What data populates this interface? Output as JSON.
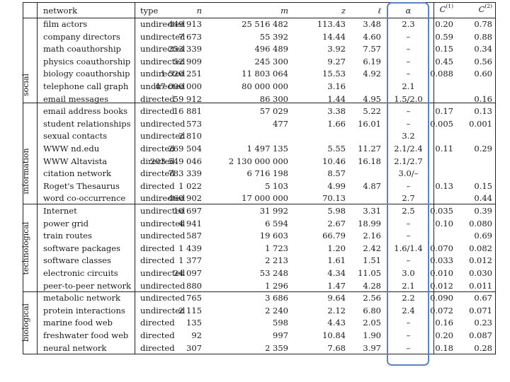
{
  "headers": {
    "network": "network",
    "type": "type",
    "n": "n",
    "m": "m",
    "z": "z",
    "l": "ℓ",
    "alpha": "α",
    "c1_base": "C",
    "c1_sup": "(1)",
    "c2_base": "C",
    "c2_sup": "(2)"
  },
  "groups": {
    "social": "social",
    "information": "information",
    "technological": "technological",
    "biological": "biological"
  },
  "rows": [
    {
      "network": "film actors",
      "type": "undirected",
      "n": "449 913",
      "m": "25 516 482",
      "z": "113.43",
      "l": "3.48",
      "alpha": "2.3",
      "c1": "0.20",
      "c2": "0.78"
    },
    {
      "network": "company directors",
      "type": "undirected",
      "n": "7 673",
      "m": "55 392",
      "z": "14.44",
      "l": "4.60",
      "alpha": "–",
      "c1": "0.59",
      "c2": "0.88"
    },
    {
      "network": "math coauthorship",
      "type": "undirected",
      "n": "253 339",
      "m": "496 489",
      "z": "3.92",
      "l": "7.57",
      "alpha": "–",
      "c1": "0.15",
      "c2": "0.34"
    },
    {
      "network": "physics coauthorship",
      "type": "undirected",
      "n": "52 909",
      "m": "245 300",
      "z": "9.27",
      "l": "6.19",
      "alpha": "–",
      "c1": "0.45",
      "c2": "0.56"
    },
    {
      "network": "biology coauthorship",
      "type": "undirected",
      "n": "1 520 251",
      "m": "11 803 064",
      "z": "15.53",
      "l": "4.92",
      "alpha": "–",
      "c1": "0.088",
      "c2": "0.60"
    },
    {
      "network": "telephone call graph",
      "type": "undirected",
      "n": "47 000 000",
      "m": "80 000 000",
      "z": "3.16",
      "l": "",
      "alpha": "2.1",
      "c1": "",
      "c2": ""
    },
    {
      "network": "email messages",
      "type": "directed",
      "n": "59 912",
      "m": "86 300",
      "z": "1.44",
      "l": "4.95",
      "alpha": "1.5/2.0",
      "c1": "",
      "c2": "0.16"
    },
    {
      "network": "email address books",
      "type": "directed",
      "n": "16 881",
      "m": "57 029",
      "z": "3.38",
      "l": "5.22",
      "alpha": "–",
      "c1": "0.17",
      "c2": "0.13"
    },
    {
      "network": "student relationships",
      "type": "undirected",
      "n": "573",
      "m": "477",
      "z": "1.66",
      "l": "16.01",
      "alpha": "–",
      "c1": "0.005",
      "c2": "0.001"
    },
    {
      "network": "sexual contacts",
      "type": "undirected",
      "n": "2 810",
      "m": "",
      "z": "",
      "l": "",
      "alpha": "3.2",
      "c1": "",
      "c2": ""
    },
    {
      "network": "WWW nd.edu",
      "type": "directed",
      "n": "269 504",
      "m": "1 497 135",
      "z": "5.55",
      "l": "11.27",
      "alpha": "2.1/2.4",
      "c1": "0.11",
      "c2": "0.29"
    },
    {
      "network": "WWW Altavista",
      "type": "directed",
      "n": "203 549 046",
      "m": "2 130 000 000",
      "z": "10.46",
      "l": "16.18",
      "alpha": "2.1/2.7",
      "c1": "",
      "c2": ""
    },
    {
      "network": "citation network",
      "type": "directed",
      "n": "783 339",
      "m": "6 716 198",
      "z": "8.57",
      "l": "",
      "alpha": "3.0/–",
      "c1": "",
      "c2": ""
    },
    {
      "network": "Roget's Thesaurus",
      "type": "directed",
      "n": "1 022",
      "m": "5 103",
      "z": "4.99",
      "l": "4.87",
      "alpha": "–",
      "c1": "0.13",
      "c2": "0.15"
    },
    {
      "network": "word co-occurrence",
      "type": "undirected",
      "n": "460 902",
      "m": "17 000 000",
      "z": "70.13",
      "l": "",
      "alpha": "2.7",
      "c1": "",
      "c2": "0.44"
    },
    {
      "network": "Internet",
      "type": "undirected",
      "n": "10 697",
      "m": "31 992",
      "z": "5.98",
      "l": "3.31",
      "alpha": "2.5",
      "c1": "0.035",
      "c2": "0.39"
    },
    {
      "network": "power grid",
      "type": "undirected",
      "n": "4 941",
      "m": "6 594",
      "z": "2.67",
      "l": "18.99",
      "alpha": "–",
      "c1": "0.10",
      "c2": "0.080"
    },
    {
      "network": "train routes",
      "type": "undirected",
      "n": "587",
      "m": "19 603",
      "z": "66.79",
      "l": "2.16",
      "alpha": "–",
      "c1": "",
      "c2": "0.69"
    },
    {
      "network": "software packages",
      "type": "directed",
      "n": "1 439",
      "m": "1 723",
      "z": "1.20",
      "l": "2.42",
      "alpha": "1.6/1.4",
      "c1": "0.070",
      "c2": "0.082"
    },
    {
      "network": "software classes",
      "type": "directed",
      "n": "1 377",
      "m": "2 213",
      "z": "1.61",
      "l": "1.51",
      "alpha": "–",
      "c1": "0.033",
      "c2": "0.012"
    },
    {
      "network": "electronic circuits",
      "type": "undirected",
      "n": "24 097",
      "m": "53 248",
      "z": "4.34",
      "l": "11.05",
      "alpha": "3.0",
      "c1": "0.010",
      "c2": "0.030"
    },
    {
      "network": "peer-to-peer network",
      "type": "undirected",
      "n": "880",
      "m": "1 296",
      "z": "1.47",
      "l": "4.28",
      "alpha": "2.1",
      "c1": "0.012",
      "c2": "0.011"
    },
    {
      "network": "metabolic network",
      "type": "undirected",
      "n": "765",
      "m": "3 686",
      "z": "9.64",
      "l": "2.56",
      "alpha": "2.2",
      "c1": "0.090",
      "c2": "0.67"
    },
    {
      "network": "protein interactions",
      "type": "undirected",
      "n": "2 115",
      "m": "2 240",
      "z": "2.12",
      "l": "6.80",
      "alpha": "2.4",
      "c1": "0.072",
      "c2": "0.071"
    },
    {
      "network": "marine food web",
      "type": "directed",
      "n": "135",
      "m": "598",
      "z": "4.43",
      "l": "2.05",
      "alpha": "–",
      "c1": "0.16",
      "c2": "0.23"
    },
    {
      "network": "freshwater food web",
      "type": "directed",
      "n": "92",
      "m": "997",
      "z": "10.84",
      "l": "1.90",
      "alpha": "–",
      "c1": "0.20",
      "c2": "0.087"
    },
    {
      "network": "neural network",
      "type": "directed",
      "n": "307",
      "m": "2 359",
      "z": "7.68",
      "l": "3.97",
      "alpha": "–",
      "c1": "0.18",
      "c2": "0.28"
    }
  ]
}
